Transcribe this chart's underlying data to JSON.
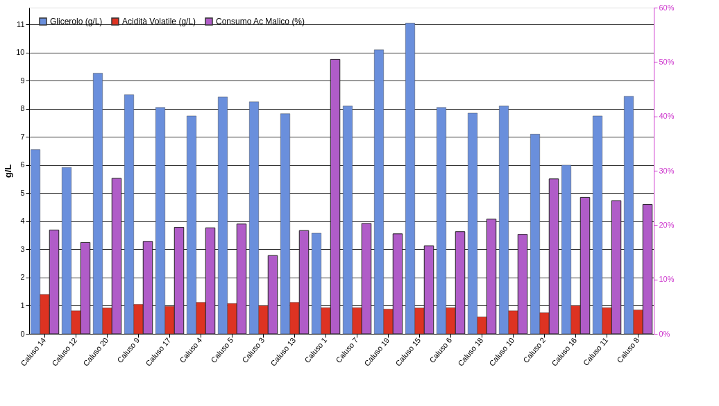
{
  "chart_data": {
    "type": "bar",
    "ylabel": "g/L",
    "categories": [
      "Caluso 14",
      "Caluso 12",
      "Caluso 20",
      "Caluso 9",
      "Caluso 17",
      "Caluso 4",
      "Caluso 5",
      "Caluso 3",
      "Caluso 13",
      "Caluso 1",
      "Caluso 7",
      "Caluso 19",
      "Caluso 15",
      "Caluso 6",
      "Caluso 18",
      "Caluso 10",
      "Caluso 2",
      "Caluso 16",
      "Caluso 11",
      "Caluso 8"
    ],
    "series": [
      {
        "name": "Glicerolo (g/L)",
        "color": "#6a8fdc",
        "values": [
          6.55,
          5.92,
          9.27,
          8.5,
          8.05,
          7.75,
          8.42,
          8.25,
          7.83,
          3.58,
          8.1,
          10.1,
          11.05,
          8.05,
          7.85,
          8.1,
          7.1,
          6.0,
          7.75,
          8.45
        ]
      },
      {
        "name": "Acidità Volatile (g/L)",
        "color": "#dd3322",
        "values": [
          1.4,
          0.82,
          0.92,
          1.05,
          0.98,
          1.12,
          1.08,
          1.0,
          1.12,
          0.93,
          0.93,
          0.88,
          0.92,
          0.93,
          0.6,
          0.82,
          0.75,
          1.0,
          0.93,
          0.85
        ]
      },
      {
        "name": "Consumo Ac Malico (%)",
        "color": "#b05cc8",
        "axis": "y2",
        "values": [
          19.1,
          16.8,
          28.6,
          17.0,
          19.6,
          19.5,
          20.2,
          14.4,
          19.0,
          50.5,
          20.3,
          18.4,
          16.2,
          18.8,
          21.1,
          18.3,
          28.5,
          25.1,
          24.5,
          23.8
        ]
      }
    ],
    "ylim": [
      0,
      11.6
    ],
    "yticks": [
      0,
      1,
      2,
      3,
      4,
      5,
      6,
      7,
      8,
      9,
      10,
      11
    ],
    "y2lim": [
      0,
      60
    ],
    "y2ticks": [
      {
        "value": 0,
        "label": "0%"
      },
      {
        "value": 10,
        "label": "10%"
      },
      {
        "value": 20,
        "label": "20%"
      },
      {
        "value": 30,
        "label": "30%"
      },
      {
        "value": 40,
        "label": "40%"
      },
      {
        "value": 50,
        "label": "50%"
      },
      {
        "value": 60,
        "label": "60%"
      }
    ],
    "grid": "y",
    "legend": "top left"
  }
}
